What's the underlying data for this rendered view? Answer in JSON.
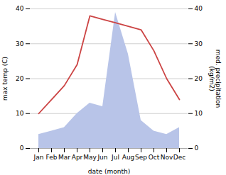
{
  "chart_data": {
    "type": "line",
    "categories": [
      "Jan",
      "Feb",
      "Mar",
      "Apr",
      "May",
      "Jun",
      "Jul",
      "Aug",
      "Sep",
      "Oct",
      "Nov",
      "Dec"
    ],
    "series": [
      {
        "type": "area",
        "axis": "y2",
        "color": "#b8c4e8",
        "values": [
          4,
          5,
          6,
          10,
          13,
          12,
          39,
          27,
          8,
          5,
          4,
          6
        ]
      },
      {
        "type": "line",
        "color": "#cc4444",
        "values": [
          10,
          14,
          18,
          24,
          38,
          37,
          36,
          35,
          34,
          28,
          20,
          14
        ]
      }
    ],
    "xlabel": "date (month)",
    "ylabel": "max temp (C)",
    "y2label": "med. precipitation\n(kg/m2)",
    "ylim": [
      0,
      40
    ],
    "yticks": [
      0,
      10,
      20,
      30,
      40
    ],
    "y2lim": [
      0,
      40
    ],
    "y2ticks": [
      0,
      10,
      20,
      30,
      40
    ],
    "grid": true
  }
}
